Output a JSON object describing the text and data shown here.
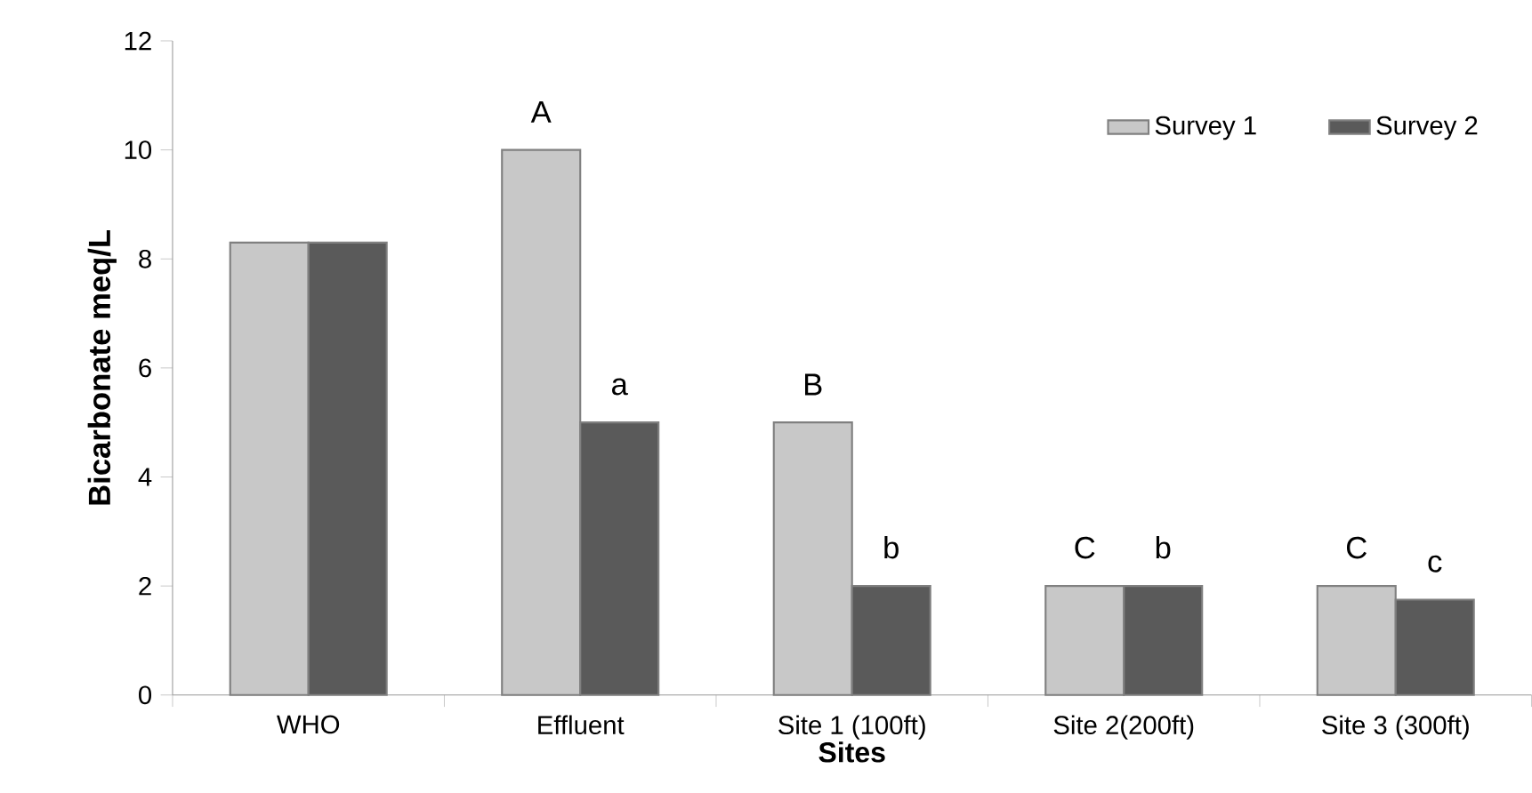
{
  "chart_data": {
    "type": "bar",
    "xlabel": "Sites",
    "ylabel": "Bicarbonate meq/L",
    "categories": [
      "WHO",
      "Effluent",
      "Site 1 (100ft)",
      "Site 2(200ft)",
      "Site 3 (300ft)"
    ],
    "series": [
      {
        "name": "Survey 1",
        "color": "#c8c8c8",
        "values": [
          8.3,
          10,
          5,
          2,
          2
        ]
      },
      {
        "name": "Survey 2",
        "color": "#5a5a5a",
        "values": [
          8.3,
          5,
          2,
          2,
          1.75
        ]
      }
    ],
    "ylim": [
      0,
      12
    ],
    "yticks": [
      0,
      2,
      4,
      6,
      8,
      10,
      12
    ],
    "grid": false,
    "legend": "top right",
    "annotations": [
      {
        "text": "A",
        "x": "Effluent",
        "y": 10
      },
      {
        "text": "a",
        "x": "Effluent",
        "y": 5
      },
      {
        "text": "B",
        "x": "Site 1 (100ft)",
        "y": 5
      },
      {
        "text": "b",
        "x": "Site 1 (100ft)",
        "y": 2
      },
      {
        "text": "C",
        "x": "Site 2(200ft)",
        "y": 2
      },
      {
        "text": "b",
        "x": "Site 2(200ft)",
        "y": 2
      },
      {
        "text": "C",
        "x": "Site 3 (300ft)",
        "y": 2
      },
      {
        "text": "c",
        "x": "Site 3 (300ft)",
        "y": 1.75
      }
    ]
  }
}
